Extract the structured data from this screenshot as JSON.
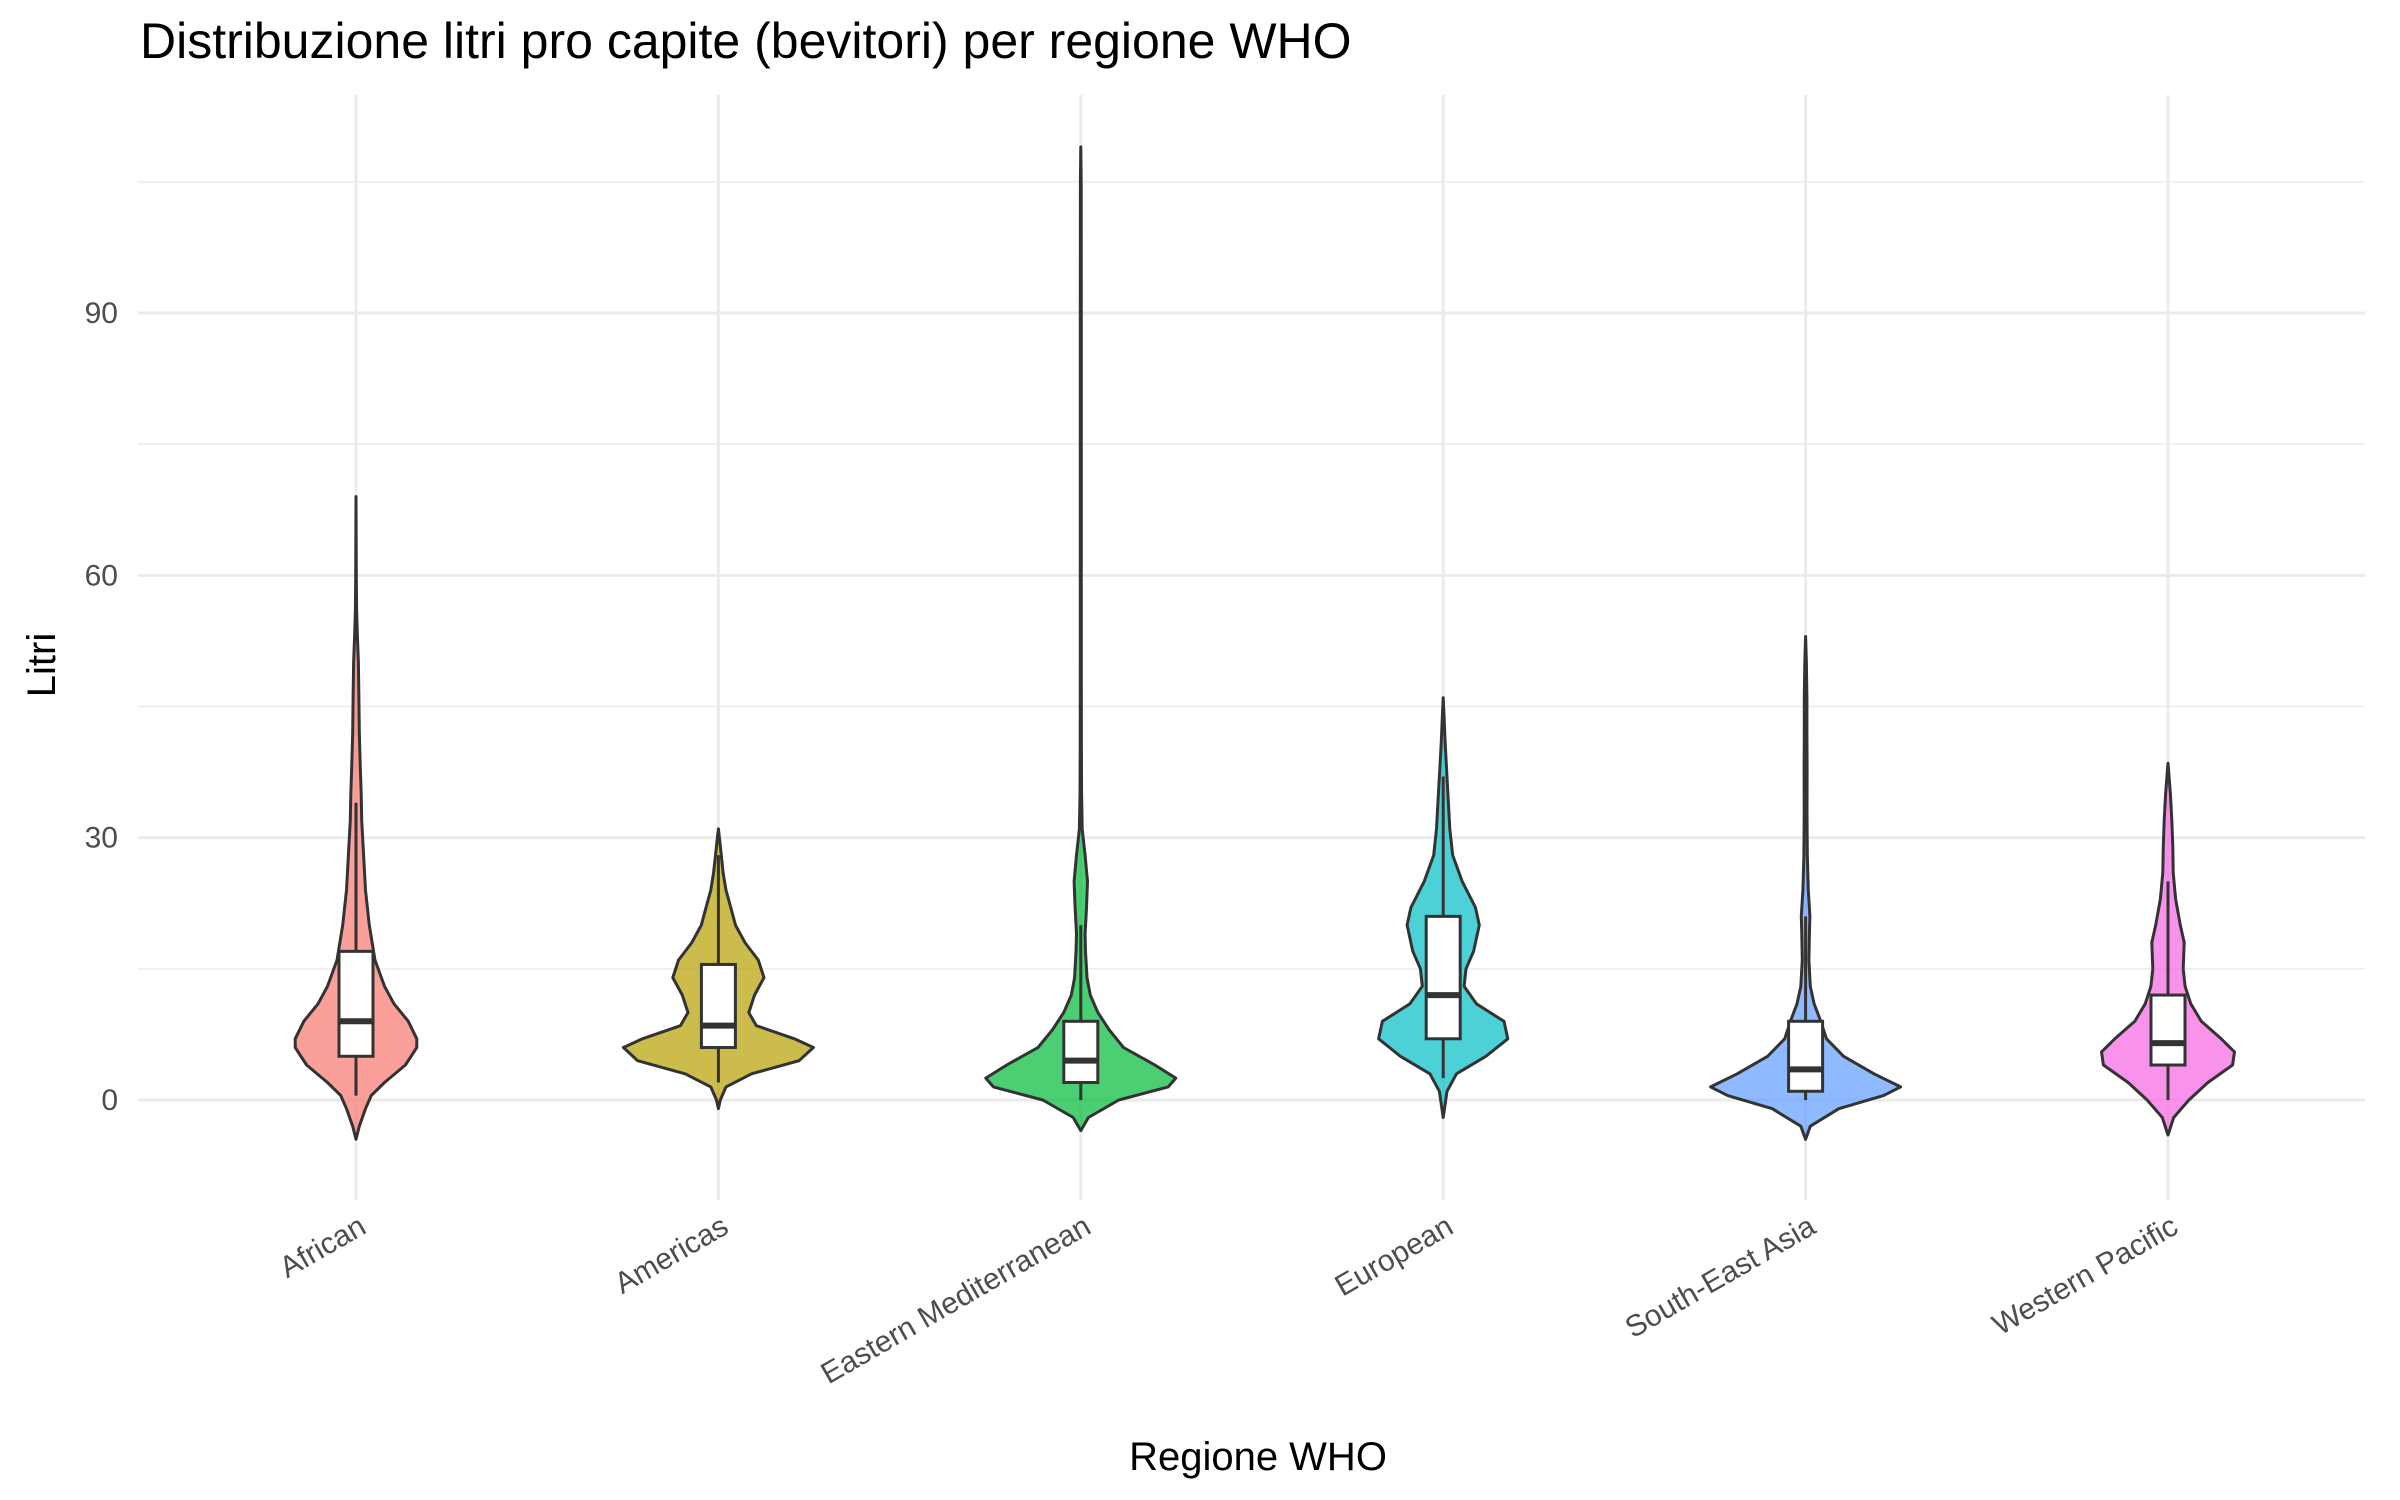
{
  "title": "Distribuzione litri pro capite (bevitori) per regione WHO",
  "chart_data": {
    "type": "violin",
    "title": "Distribuzione litri pro capite (bevitori) per regione WHO",
    "xlabel": "Regione WHO",
    "ylabel": "Litri",
    "ylim": [
      -8,
      114
    ],
    "yticks": [
      0,
      30,
      60,
      90
    ],
    "grid": true,
    "legend": "none",
    "categories": [
      "African",
      "Americas",
      "Eastern Mediterranean",
      "European",
      "South-East Asia",
      "Western Pacific"
    ],
    "colors": [
      "#F8766D",
      "#B79F00",
      "#00BA38",
      "#00BFC4",
      "#619CFF",
      "#F564E3"
    ],
    "violins": [
      {
        "name": "African",
        "range": [
          -4.5,
          69
        ],
        "profile": [
          [
            -4.5,
            0
          ],
          [
            -3,
            0.035
          ],
          [
            -1,
            0.1
          ],
          [
            0.5,
            0.16
          ],
          [
            2,
            0.3
          ],
          [
            4,
            0.52
          ],
          [
            6,
            0.64
          ],
          [
            7,
            0.64
          ],
          [
            9,
            0.55
          ],
          [
            11,
            0.4
          ],
          [
            13,
            0.3
          ],
          [
            16,
            0.2
          ],
          [
            20,
            0.14
          ],
          [
            24,
            0.1
          ],
          [
            28,
            0.08
          ],
          [
            32,
            0.06
          ],
          [
            35,
            0.055
          ],
          [
            38,
            0.045
          ],
          [
            42,
            0.035
          ],
          [
            46,
            0.03
          ],
          [
            50,
            0.025
          ],
          [
            53,
            0.015
          ],
          [
            56,
            0.006
          ],
          [
            60,
            0.003
          ],
          [
            69,
            0
          ]
        ],
        "box": {
          "q1": 5,
          "median": 9,
          "q3": 17,
          "whisker_low": 0.5,
          "whisker_high": 34
        },
        "outlier_max": 69
      },
      {
        "name": "Americas",
        "range": [
          -1,
          31
        ],
        "profile": [
          [
            -1,
            0
          ],
          [
            0,
            0.02
          ],
          [
            1.5,
            0.08
          ],
          [
            3,
            0.35
          ],
          [
            4.5,
            0.85
          ],
          [
            6,
            1.0
          ],
          [
            7,
            0.8
          ],
          [
            8.5,
            0.4
          ],
          [
            10,
            0.32
          ],
          [
            12,
            0.38
          ],
          [
            14,
            0.48
          ],
          [
            16,
            0.42
          ],
          [
            18,
            0.28
          ],
          [
            20,
            0.18
          ],
          [
            22,
            0.13
          ],
          [
            24,
            0.08
          ],
          [
            26,
            0.05
          ],
          [
            28,
            0.03
          ],
          [
            30,
            0.01
          ],
          [
            31,
            0
          ]
        ],
        "box": {
          "q1": 6,
          "median": 8.5,
          "q3": 15.5,
          "whisker_low": 2,
          "whisker_high": 28
        },
        "outlier_max": 31
      },
      {
        "name": "Eastern Mediterranean",
        "range": [
          -3.5,
          109
        ],
        "profile": [
          [
            -3.5,
            0
          ],
          [
            -2,
            0.08
          ],
          [
            0,
            0.4
          ],
          [
            1.5,
            0.92
          ],
          [
            2.5,
            1.0
          ],
          [
            4,
            0.78
          ],
          [
            6,
            0.45
          ],
          [
            8,
            0.3
          ],
          [
            10,
            0.18
          ],
          [
            12,
            0.1
          ],
          [
            14,
            0.065
          ],
          [
            17,
            0.05
          ],
          [
            19,
            0.045
          ],
          [
            22,
            0.06
          ],
          [
            25,
            0.07
          ],
          [
            28,
            0.045
          ],
          [
            31,
            0.015
          ],
          [
            35,
            0.008
          ],
          [
            40,
            0.006
          ],
          [
            50,
            0.005
          ],
          [
            70,
            0.005
          ],
          [
            90,
            0.005
          ],
          [
            105,
            0.004
          ],
          [
            109,
            0
          ]
        ],
        "box": {
          "q1": 2,
          "median": 4.5,
          "q3": 9,
          "whisker_low": 0,
          "whisker_high": 20
        },
        "outlier_max": 109
      },
      {
        "name": "European",
        "range": [
          -2,
          46
        ],
        "profile": [
          [
            -2,
            0
          ],
          [
            1,
            0.04
          ],
          [
            3,
            0.14
          ],
          [
            5,
            0.45
          ],
          [
            7,
            0.68
          ],
          [
            9,
            0.64
          ],
          [
            11,
            0.35
          ],
          [
            13,
            0.22
          ],
          [
            15,
            0.24
          ],
          [
            17,
            0.32
          ],
          [
            20,
            0.38
          ],
          [
            22,
            0.34
          ],
          [
            25,
            0.2
          ],
          [
            28,
            0.1
          ],
          [
            31,
            0.07
          ],
          [
            35,
            0.05
          ],
          [
            38,
            0.035
          ],
          [
            41,
            0.02
          ],
          [
            44,
            0.008
          ],
          [
            46,
            0
          ]
        ],
        "box": {
          "q1": 7,
          "median": 12,
          "q3": 21,
          "whisker_low": 2.5,
          "whisker_high": 37
        },
        "outlier_max": 46
      },
      {
        "name": "South-East Asia",
        "range": [
          -4.5,
          53
        ],
        "profile": [
          [
            -4.5,
            0
          ],
          [
            -3,
            0.05
          ],
          [
            -1,
            0.35
          ],
          [
            0.5,
            0.82
          ],
          [
            1.5,
            1.0
          ],
          [
            3,
            0.72
          ],
          [
            5,
            0.4
          ],
          [
            7,
            0.22
          ],
          [
            9,
            0.16
          ],
          [
            11,
            0.09
          ],
          [
            13,
            0.05
          ],
          [
            16,
            0.035
          ],
          [
            19,
            0.04
          ],
          [
            21,
            0.045
          ],
          [
            24,
            0.028
          ],
          [
            28,
            0.018
          ],
          [
            33,
            0.015
          ],
          [
            38,
            0.016
          ],
          [
            42,
            0.014
          ],
          [
            46,
            0.014
          ],
          [
            50,
            0.008
          ],
          [
            53,
            0
          ]
        ],
        "box": {
          "q1": 1,
          "median": 3.5,
          "q3": 9,
          "whisker_low": 0,
          "whisker_high": 21
        },
        "outlier_max": 53
      },
      {
        "name": "Western Pacific",
        "range": [
          -4,
          38.5
        ],
        "profile": [
          [
            -4,
            0
          ],
          [
            -2,
            0.06
          ],
          [
            0,
            0.22
          ],
          [
            2,
            0.42
          ],
          [
            4,
            0.68
          ],
          [
            5.5,
            0.7
          ],
          [
            7,
            0.56
          ],
          [
            9,
            0.35
          ],
          [
            11,
            0.24
          ],
          [
            13,
            0.18
          ],
          [
            15,
            0.16
          ],
          [
            18,
            0.17
          ],
          [
            20,
            0.13
          ],
          [
            23,
            0.08
          ],
          [
            26,
            0.055
          ],
          [
            29,
            0.05
          ],
          [
            32,
            0.04
          ],
          [
            35,
            0.025
          ],
          [
            38.5,
            0
          ]
        ],
        "box": {
          "q1": 4,
          "median": 6.5,
          "q3": 12,
          "whisker_low": 0,
          "whisker_high": 25
        },
        "outlier_max": 38.5
      }
    ]
  }
}
